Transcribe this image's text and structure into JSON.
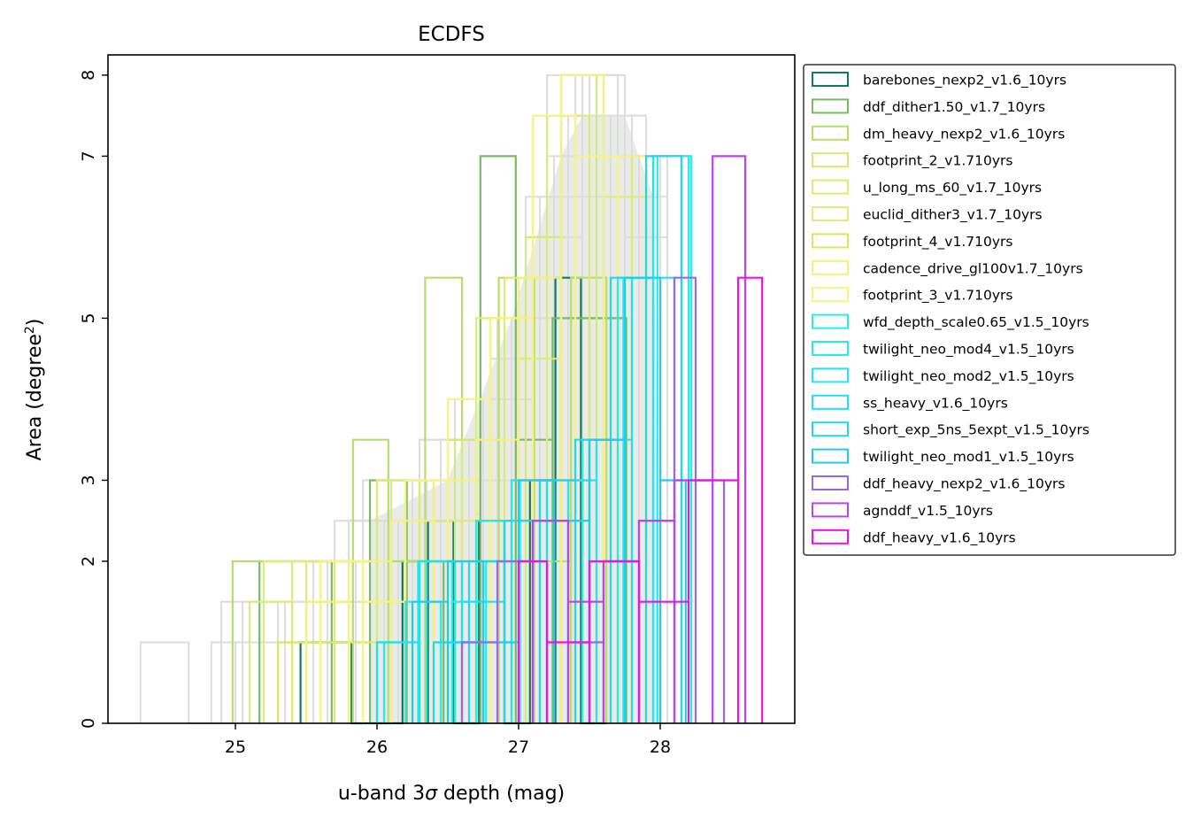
{
  "chart_data": {
    "type": "bar",
    "subtype": "step-histogram",
    "title": "ECDFS",
    "xlabel_prefix": "u-band 3",
    "xlabel_symbol": "σ",
    "xlabel_suffix": " depth (mag)",
    "ylabel_prefix": "Area (degree",
    "ylabel_sup": "2",
    "ylabel_suffix": ")",
    "xlim": [
      24.1,
      28.95
    ],
    "ylim": [
      0,
      8.25
    ],
    "xticks": [
      25,
      26,
      27,
      28
    ],
    "xtick_labels": [
      "25",
      "26",
      "27",
      "28"
    ],
    "yticks": [
      0,
      2,
      3,
      5,
      7,
      8
    ],
    "ytick_labels": [
      "0",
      "2",
      "3",
      "5",
      "7",
      "8"
    ],
    "grid": false,
    "legend_position": "outside upper right",
    "background_color": "#d6dbd6",
    "background_series": [
      {
        "color": "#dddddd",
        "edges": [
          24.33,
          24.67,
          25.0,
          25.3,
          25.6,
          25.9,
          26.2,
          26.5,
          26.8,
          27.1,
          27.4,
          27.7,
          28.0
        ],
        "counts": [
          1,
          0,
          1,
          1.5,
          1.5,
          2.5,
          3,
          3.5,
          5,
          7.5,
          8,
          7
        ]
      },
      {
        "color": "#dddddd",
        "edges": [
          24.83,
          25.1,
          25.4,
          25.7,
          26.0,
          26.3,
          26.6,
          26.9,
          27.2,
          27.5,
          27.8,
          28.05
        ],
        "counts": [
          1,
          1.5,
          2,
          2.5,
          3,
          3.5,
          4,
          5,
          7.5,
          7.5,
          7
        ]
      },
      {
        "color": "#dddddd",
        "edges": [
          24.9,
          25.2,
          25.5,
          25.8,
          26.1,
          26.4,
          26.7,
          27.0,
          27.3,
          27.6,
          27.9
        ],
        "counts": [
          1.5,
          2,
          1.5,
          2.5,
          3,
          2.5,
          3.5,
          5,
          6.5,
          7.5
        ]
      },
      {
        "color": "#dddddd",
        "edges": [
          25.0,
          25.3,
          25.6,
          25.9,
          26.2,
          26.5,
          26.8,
          27.1,
          27.4,
          27.7,
          28.0
        ],
        "counts": [
          1,
          1.5,
          2,
          3,
          2,
          3,
          4,
          6,
          7,
          6.5
        ]
      },
      {
        "color": "#dddddd",
        "edges": [
          25.1,
          25.4,
          25.7,
          26.0,
          26.3,
          26.6,
          26.9,
          27.2,
          27.5,
          27.8
        ],
        "counts": [
          1,
          2,
          1.5,
          2,
          3.5,
          3,
          5.5,
          8,
          7
        ]
      },
      {
        "color": "#dddddd",
        "edges": [
          25.2,
          25.5,
          25.8,
          26.1,
          26.4,
          26.7,
          27.0,
          27.3,
          27.6,
          27.9
        ],
        "counts": [
          2,
          1.5,
          2.5,
          2,
          3,
          4,
          5,
          7,
          6.5
        ]
      },
      {
        "color": "#dddddd",
        "edges": [
          25.4,
          25.65,
          25.9,
          26.15,
          26.4,
          26.65,
          26.9,
          27.15,
          27.4,
          27.65,
          27.9
        ],
        "counts": [
          1,
          2,
          1.5,
          2.5,
          3,
          3.5,
          5,
          6,
          7.5,
          7
        ]
      },
      {
        "color": "#dddddd",
        "edges": [
          25.55,
          25.8,
          26.05,
          26.3,
          26.55,
          26.8,
          27.05,
          27.3,
          27.55,
          27.8
        ],
        "counts": [
          2,
          2.5,
          2,
          3,
          4,
          5,
          6.5,
          7.5,
          7
        ]
      },
      {
        "color": "#dddddd",
        "edges": [
          25.7,
          25.95,
          26.2,
          26.45,
          26.7,
          26.95,
          27.2,
          27.45,
          27.7,
          27.95
        ],
        "counts": [
          1.5,
          2,
          2.5,
          3.5,
          3,
          5,
          7,
          8,
          6.5
        ]
      },
      {
        "color": "#dddddd",
        "edges": [
          25.85,
          26.1,
          26.35,
          26.6,
          26.85,
          27.1,
          27.35,
          27.6,
          27.85
        ],
        "counts": [
          2,
          2.5,
          3,
          3.5,
          5,
          6,
          7.5,
          7
        ]
      },
      {
        "color": "#dddddd",
        "edges": [
          26.0,
          26.25,
          26.5,
          26.75,
          27.0,
          27.25,
          27.5,
          27.75,
          28.0
        ],
        "counts": [
          1.5,
          2.5,
          3,
          4,
          5.5,
          7,
          8,
          6
        ]
      },
      {
        "color": "#dddddd",
        "edges": [
          26.15,
          26.4,
          26.65,
          26.9,
          27.15,
          27.4,
          27.65,
          27.9
        ],
        "counts": [
          2,
          3,
          3.5,
          5,
          6.5,
          7.5,
          7
        ]
      },
      {
        "color": "#dddddd",
        "edges": [
          26.3,
          26.55,
          26.8,
          27.05,
          27.3,
          27.55,
          27.8,
          28.05
        ],
        "counts": [
          2,
          3,
          4.5,
          5.5,
          7,
          7.5,
          6
        ]
      },
      {
        "color": "#dddddd",
        "edges": [
          25.3,
          25.5,
          25.7,
          25.9,
          26.1,
          26.3,
          26.5,
          26.7,
          26.9,
          27.1,
          27.3,
          27.5,
          27.7,
          27.9
        ],
        "counts": [
          1,
          1.5,
          2,
          1.5,
          2.5,
          2,
          3,
          3.5,
          4.5,
          5.5,
          7,
          8,
          7
        ]
      },
      {
        "color": "#dddddd",
        "edges": [
          25.05,
          25.35,
          25.65,
          25.95,
          26.25,
          26.55,
          26.85,
          27.15,
          27.45,
          27.75,
          28.0
        ],
        "counts": [
          1.5,
          1,
          2,
          2.5,
          3,
          3.5,
          5,
          6,
          7,
          6.5
        ]
      },
      {
        "color": "#dddddd",
        "edges": [
          26.5,
          26.7,
          26.9,
          27.1,
          27.3,
          27.5,
          27.7,
          27.9,
          28.05
        ],
        "counts": [
          3,
          3.5,
          5,
          6,
          7.5,
          8,
          7.5,
          6.5
        ]
      }
    ],
    "series": [
      {
        "name": "barebones_nexp2_v1.6_10yrs",
        "color": "#117a5c",
        "edges": [
          25.46,
          25.82,
          26.18,
          26.36,
          26.54,
          26.72,
          26.9,
          27.08,
          27.26,
          27.44,
          27.62
        ],
        "counts": [
          1,
          0,
          2,
          2.5,
          0,
          2.5,
          0,
          3,
          5.5,
          0
        ]
      },
      {
        "name": "ddf_dither1.50_v1.7_10yrs",
        "color": "#77bb66",
        "edges": [
          25.17,
          25.68,
          25.95,
          26.21,
          26.47,
          26.73,
          26.98,
          27.24,
          27.5,
          27.76
        ],
        "counts": [
          2,
          1,
          3,
          2,
          1,
          7,
          3.5,
          5,
          5
        ]
      },
      {
        "name": "dm_heavy_nexp2_v1.6_10yrs",
        "color": "#b8dd6a",
        "edges": [
          24.98,
          25.83,
          26.08,
          26.34,
          26.6,
          26.86,
          27.11,
          27.37,
          27.62
        ],
        "counts": [
          2,
          3.5,
          2,
          5.5,
          2,
          5.5,
          2,
          5.5
        ]
      },
      {
        "name": "footprint_2_v1.710yrs",
        "color": "#d4ea77",
        "edges": [
          25.4,
          25.7,
          26.0,
          26.3,
          26.55,
          26.8,
          27.05,
          27.3,
          27.55,
          27.8
        ],
        "counts": [
          1,
          2,
          3,
          2,
          3.5,
          5,
          6,
          8,
          7
        ]
      },
      {
        "name": "u_long_ms_60_v1.7_10yrs",
        "color": "#dcec72",
        "edges": [
          25.1,
          25.4,
          25.7,
          26.0,
          26.3,
          26.6,
          26.9,
          27.2,
          27.5,
          27.8
        ],
        "counts": [
          1.5,
          2,
          1,
          3,
          2.5,
          3.5,
          5.5,
          7.5,
          7
        ]
      },
      {
        "name": "euclid_dither3_v1.7_10yrs",
        "color": "#dded7a",
        "edges": [
          25.2,
          25.5,
          25.8,
          26.1,
          26.4,
          26.7,
          27.0,
          27.3,
          27.6,
          27.9
        ],
        "counts": [
          2,
          1.5,
          2,
          3,
          2.5,
          5,
          4.5,
          8,
          6.5
        ]
      },
      {
        "name": "footprint_4_v1.710yrs",
        "color": "#d2ec62",
        "edges": [
          25.3,
          25.6,
          25.9,
          26.2,
          26.5,
          26.8,
          27.1,
          27.4,
          27.7
        ],
        "counts": [
          1,
          2,
          1.5,
          3,
          3.5,
          5,
          7.5,
          7
        ]
      },
      {
        "name": "cadence_drive_gl100v1.7_10yrs",
        "color": "#f4f27a",
        "edges": [
          25.5,
          25.8,
          26.1,
          26.4,
          26.7,
          27.0,
          27.3,
          27.6,
          27.9
        ],
        "counts": [
          1.5,
          2,
          2.5,
          3,
          3.5,
          5.5,
          8,
          7
        ]
      },
      {
        "name": "footprint_3_v1.710yrs",
        "color": "#f8f47e",
        "edges": [
          25.6,
          25.9,
          26.2,
          26.5,
          26.8,
          27.1,
          27.4,
          27.7
        ],
        "counts": [
          2,
          1.5,
          3,
          4,
          5,
          7.5,
          7
        ]
      },
      {
        "name": "wfd_depth_scale0.65_v1.5_10yrs",
        "color": "#22eeee",
        "edges": [
          26.05,
          26.29,
          26.53,
          26.77,
          27.01,
          27.25,
          27.5,
          27.74,
          27.98,
          28.22
        ],
        "counts": [
          1,
          2,
          1.5,
          2,
          3,
          2.5,
          3.5,
          5.5,
          7
        ]
      },
      {
        "name": "twilight_neo_mod4_v1.5_10yrs",
        "color": "#22eeee",
        "edges": [
          26.2,
          26.45,
          26.7,
          26.95,
          27.2,
          27.45,
          27.7,
          27.95,
          28.2
        ],
        "counts": [
          1.5,
          1,
          2.5,
          2,
          3,
          3.5,
          5.5,
          7
        ]
      },
      {
        "name": "twilight_neo_mod2_v1.5_10yrs",
        "color": "#22e6f0",
        "edges": [
          26.35,
          26.55,
          26.75,
          26.95,
          27.15,
          27.35,
          27.55,
          27.75,
          27.95,
          28.15
        ],
        "counts": [
          2,
          1,
          2,
          3,
          2.5,
          3,
          3.5,
          5.5,
          7
        ]
      },
      {
        "name": "ss_heavy_v1.6_10yrs",
        "color": "#22e0f4",
        "edges": [
          26.0,
          26.3,
          26.6,
          26.9,
          27.2,
          27.5,
          27.8,
          28.1
        ],
        "counts": [
          1,
          2,
          1.5,
          2.5,
          3,
          3.5,
          5.5
        ]
      },
      {
        "name": "short_exp_5ns_5expt_v1.5_10yrs",
        "color": "#22d8f0",
        "edges": [
          26.4,
          26.65,
          26.9,
          27.15,
          27.4,
          27.65,
          27.9,
          28.15
        ],
        "counts": [
          1,
          2,
          2.5,
          3,
          3.5,
          5.5,
          7
        ]
      },
      {
        "name": "twilight_neo_mod1_v1.5_10yrs",
        "color": "#22ccee",
        "edges": [
          26.25,
          26.5,
          26.75,
          27.0,
          27.25,
          27.5,
          27.75,
          28.0,
          28.18
        ],
        "counts": [
          1.5,
          2,
          1,
          3,
          2.5,
          3.5,
          5.5,
          3
        ]
      },
      {
        "name": "ddf_heavy_nexp2_v1.6_10yrs",
        "color": "#9966ee",
        "edges": [
          26.6,
          26.85,
          27.1,
          27.35,
          27.6,
          27.85,
          28.1,
          28.25,
          28.45
        ],
        "counts": [
          1,
          2,
          2.5,
          1,
          2,
          2.5,
          5.5,
          3
        ]
      },
      {
        "name": "agnddf_v1.5_10yrs",
        "color": "#bb44ee",
        "edges": [
          27.1,
          27.35,
          27.6,
          27.85,
          28.1,
          28.37,
          28.6
        ],
        "counts": [
          2.5,
          1.5,
          2,
          2.5,
          3,
          7
        ]
      },
      {
        "name": "ddf_heavy_v1.6_10yrs",
        "color": "#ee11ee",
        "edges": [
          27.0,
          27.2,
          27.5,
          27.85,
          28.2,
          28.55,
          28.72
        ],
        "counts": [
          2,
          1,
          2,
          1.5,
          3,
          5.5
        ]
      }
    ]
  }
}
